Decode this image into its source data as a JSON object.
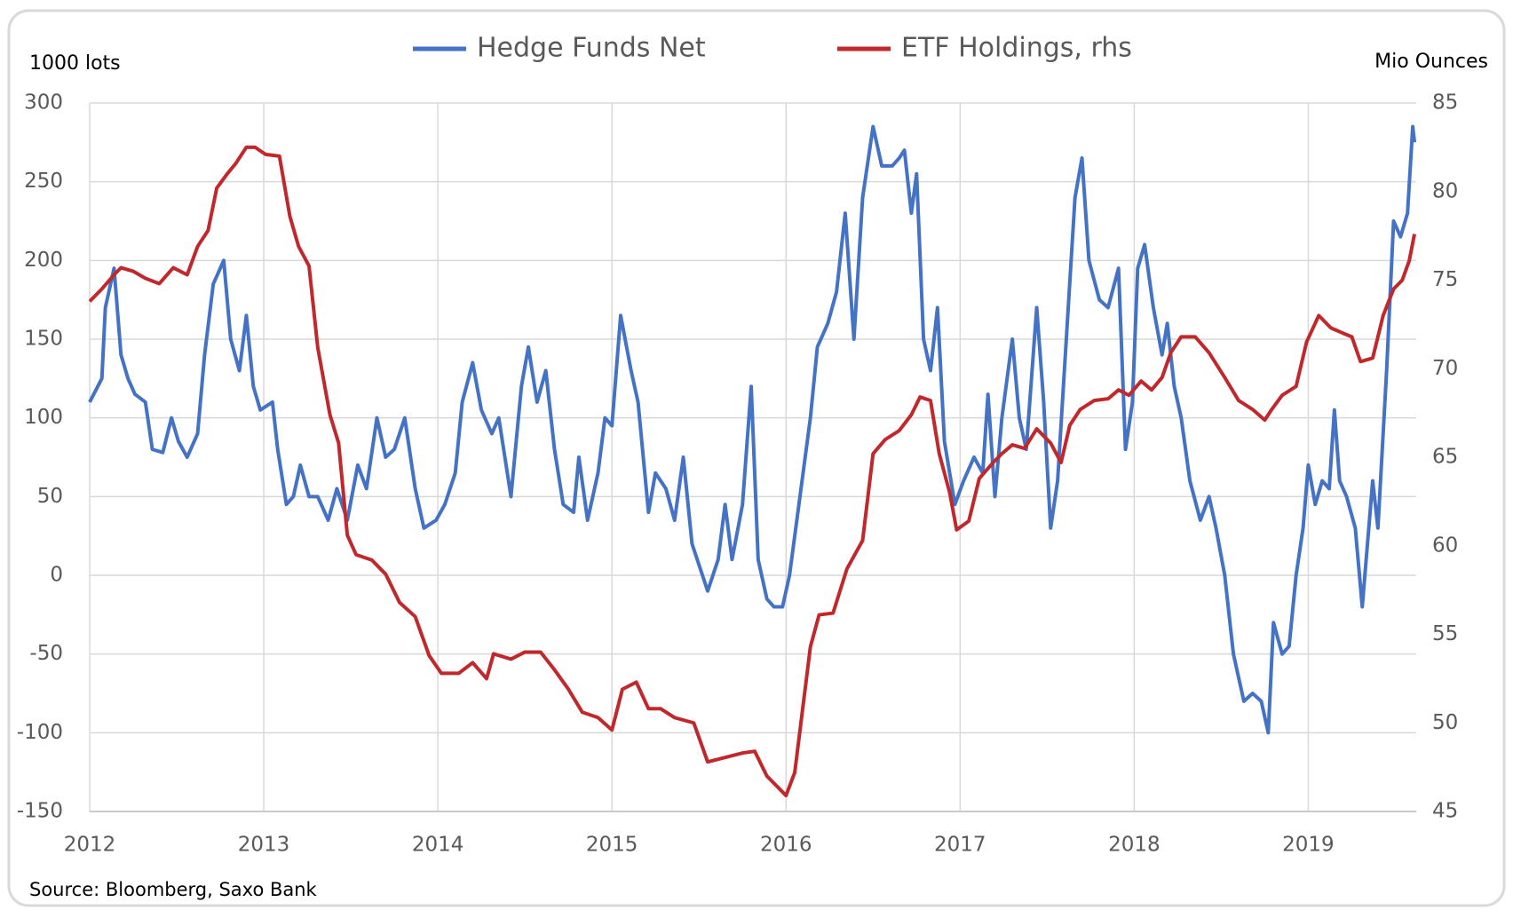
{
  "chart_data": {
    "type": "line",
    "y_label": "1000 lots",
    "y2_label": "Mio Ounces",
    "source": "Source: Bloomberg, Saxo Bank",
    "legend": "top",
    "grid": true,
    "xlim": [
      2012,
      2019.62
    ],
    "xticks": [
      2012,
      2013,
      2014,
      2015,
      2016,
      2017,
      2018,
      2019
    ],
    "ylim": [
      -150,
      300
    ],
    "yticks": [
      -150,
      -100,
      -50,
      0,
      50,
      100,
      150,
      200,
      250,
      300
    ],
    "y2lim": [
      45,
      85
    ],
    "y2ticks": [
      45,
      50,
      55,
      60,
      65,
      70,
      75,
      80,
      85
    ],
    "series": [
      {
        "name": "Hedge Funds Net",
        "color": "#4472c4",
        "x": [
          2012.0,
          2012.07,
          2012.09,
          2012.14,
          2012.18,
          2012.22,
          2012.26,
          2012.32,
          2012.36,
          2012.42,
          2012.47,
          2012.51,
          2012.56,
          2012.62,
          2012.66,
          2012.71,
          2012.77,
          2012.81,
          2012.86,
          2012.9,
          2012.94,
          2012.98,
          2013.05,
          2013.08,
          2013.13,
          2013.17,
          2013.21,
          2013.26,
          2013.31,
          2013.37,
          2013.42,
          2013.48,
          2013.54,
          2013.59,
          2013.65,
          2013.7,
          2013.75,
          2013.81,
          2013.87,
          2013.92,
          2013.99,
          2014.04,
          2014.1,
          2014.14,
          2014.2,
          2014.25,
          2014.31,
          2014.35,
          2014.42,
          2014.48,
          2014.52,
          2014.57,
          2014.62,
          2014.67,
          2014.72,
          2014.78,
          2014.81,
          2014.86,
          2014.92,
          2014.96,
          2015.0,
          2015.05,
          2015.11,
          2015.15,
          2015.21,
          2015.25,
          2015.31,
          2015.36,
          2015.41,
          2015.46,
          2015.52,
          2015.55,
          2015.61,
          2015.65,
          2015.69,
          2015.75,
          2015.8,
          2015.84,
          2015.89,
          2015.93,
          2015.98,
          2016.02,
          2016.08,
          2016.14,
          2016.18,
          2016.24,
          2016.29,
          2016.34,
          2016.39,
          2016.44,
          2016.5,
          2016.55,
          2016.61,
          2016.65,
          2016.68,
          2016.72,
          2016.75,
          2016.79,
          2016.83,
          2016.87,
          2016.91,
          2016.97,
          2017.02,
          2017.08,
          2017.13,
          2017.16,
          2017.2,
          2017.24,
          2017.3,
          2017.34,
          2017.38,
          2017.44,
          2017.48,
          2017.52,
          2017.56,
          2017.61,
          2017.66,
          2017.7,
          2017.74,
          2017.8,
          2017.85,
          2017.91,
          2017.95,
          2017.99,
          2018.02,
          2018.06,
          2018.11,
          2018.16,
          2018.19,
          2018.23,
          2018.27,
          2018.32,
          2018.38,
          2018.43,
          2018.47,
          2018.52,
          2018.57,
          2018.63,
          2018.68,
          2018.73,
          2018.77,
          2018.8,
          2018.85,
          2018.89,
          2018.93,
          2018.97,
          2019.0,
          2019.04,
          2019.08,
          2019.12,
          2019.15,
          2019.18,
          2019.22,
          2019.27,
          2019.31,
          2019.34,
          2019.37,
          2019.4,
          2019.45,
          2019.49,
          2019.53,
          2019.57,
          2019.6,
          2019.61
        ],
        "values": [
          110,
          125,
          170,
          195,
          140,
          125,
          115,
          110,
          80,
          78,
          100,
          85,
          75,
          90,
          140,
          185,
          200,
          150,
          130,
          165,
          120,
          105,
          110,
          80,
          45,
          50,
          70,
          50,
          50,
          35,
          55,
          35,
          70,
          55,
          100,
          75,
          80,
          100,
          55,
          30,
          35,
          45,
          65,
          110,
          135,
          105,
          90,
          100,
          50,
          120,
          145,
          110,
          130,
          80,
          45,
          40,
          75,
          35,
          65,
          100,
          95,
          165,
          130,
          110,
          40,
          65,
          55,
          35,
          75,
          20,
          0,
          -10,
          10,
          45,
          10,
          45,
          120,
          10,
          -15,
          -20,
          -20,
          0,
          50,
          100,
          145,
          160,
          180,
          230,
          150,
          240,
          285,
          260,
          260,
          265,
          270,
          230,
          255,
          150,
          130,
          170,
          85,
          45,
          60,
          75,
          65,
          115,
          50,
          100,
          150,
          100,
          80,
          170,
          110,
          30,
          60,
          150,
          240,
          265,
          200,
          175,
          170,
          195,
          80,
          110,
          195,
          210,
          170,
          140,
          160,
          120,
          100,
          60,
          35,
          50,
          30,
          0,
          -50,
          -80,
          -75,
          -80,
          -100,
          -30,
          -50,
          -45,
          0,
          30,
          70,
          45,
          60,
          55,
          105,
          60,
          50,
          30,
          -20,
          20,
          60,
          30,
          130,
          225,
          215,
          230,
          285,
          275
        ]
      },
      {
        "name": "ETF Holdings, rhs",
        "color": "#c0282b",
        "axis": "y2",
        "x": [
          2012.0,
          2012.07,
          2012.14,
          2012.18,
          2012.25,
          2012.32,
          2012.4,
          2012.48,
          2012.56,
          2012.62,
          2012.68,
          2012.73,
          2012.79,
          2012.84,
          2012.9,
          2012.95,
          2013.01,
          2013.09,
          2013.15,
          2013.2,
          2013.26,
          2013.31,
          2013.38,
          2013.43,
          2013.48,
          2013.53,
          2013.62,
          2013.7,
          2013.78,
          2013.87,
          2013.95,
          2014.02,
          2014.12,
          2014.2,
          2014.28,
          2014.32,
          2014.42,
          2014.5,
          2014.59,
          2014.67,
          2014.75,
          2014.83,
          2014.92,
          2015.0,
          2015.06,
          2015.14,
          2015.21,
          2015.28,
          2015.36,
          2015.47,
          2015.55,
          2015.67,
          2015.75,
          2015.82,
          2015.89,
          2015.96,
          2016.0,
          2016.05,
          2016.14,
          2016.19,
          2016.27,
          2016.35,
          2016.44,
          2016.5,
          2016.57,
          2016.65,
          2016.72,
          2016.77,
          2016.83,
          2016.88,
          2016.94,
          2016.98,
          2017.05,
          2017.11,
          2017.19,
          2017.24,
          2017.3,
          2017.37,
          2017.44,
          2017.52,
          2017.58,
          2017.63,
          2017.69,
          2017.77,
          2017.85,
          2017.91,
          2017.97,
          2018.04,
          2018.1,
          2018.16,
          2018.21,
          2018.27,
          2018.35,
          2018.43,
          2018.52,
          2018.6,
          2018.68,
          2018.75,
          2018.79,
          2018.85,
          2018.93,
          2018.99,
          2019.06,
          2019.13,
          2019.2,
          2019.25,
          2019.3,
          2019.37,
          2019.43,
          2019.49,
          2019.54,
          2019.58,
          2019.61
        ],
        "values": [
          73.8,
          74.5,
          75.3,
          75.7,
          75.5,
          75.1,
          74.8,
          75.7,
          75.3,
          76.9,
          77.8,
          80.2,
          81.0,
          81.6,
          82.5,
          82.5,
          82.1,
          82.0,
          78.6,
          76.9,
          75.8,
          71.2,
          67.4,
          65.8,
          60.6,
          59.5,
          59.2,
          58.4,
          56.8,
          56.0,
          53.8,
          52.8,
          52.8,
          53.4,
          52.5,
          53.9,
          53.6,
          54.0,
          54.0,
          53.0,
          51.9,
          50.6,
          50.3,
          49.6,
          51.9,
          52.3,
          50.8,
          50.8,
          50.3,
          50.0,
          47.8,
          48.1,
          48.3,
          48.4,
          47.0,
          46.3,
          45.9,
          47.2,
          54.3,
          56.1,
          56.2,
          58.7,
          60.3,
          65.2,
          66.0,
          66.5,
          67.4,
          68.4,
          68.2,
          65.2,
          63.0,
          60.9,
          61.4,
          63.8,
          64.7,
          65.2,
          65.7,
          65.5,
          66.6,
          65.8,
          64.7,
          66.8,
          67.7,
          68.2,
          68.3,
          68.8,
          68.5,
          69.3,
          68.8,
          69.5,
          70.9,
          71.8,
          71.8,
          70.9,
          69.5,
          68.2,
          67.7,
          67.1,
          67.7,
          68.5,
          69.0,
          71.5,
          73.0,
          72.3,
          72.0,
          71.8,
          70.4,
          70.6,
          73.0,
          74.5,
          75.0,
          76.1,
          77.6
        ]
      }
    ]
  }
}
